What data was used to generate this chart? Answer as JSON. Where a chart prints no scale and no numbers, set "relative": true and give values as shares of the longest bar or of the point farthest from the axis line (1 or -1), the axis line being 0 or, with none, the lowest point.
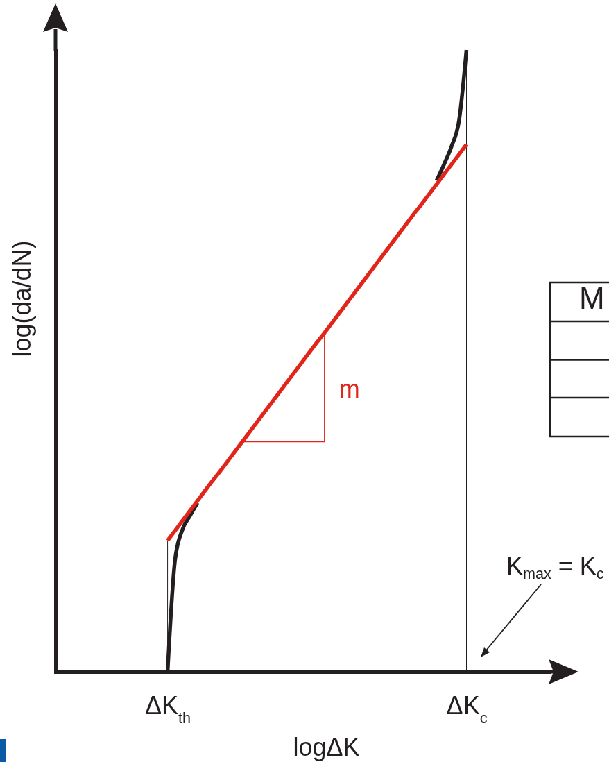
{
  "chart_data": {
    "type": "line",
    "xlabel": "logΔK",
    "ylabel": "log(da/dN)",
    "relative": true,
    "categories": [
      null,
      null,
      null,
      null,
      null,
      null,
      null,
      null,
      null,
      null,
      null,
      null,
      null,
      null,
      null,
      "ΔK$_{th}$",
      null,
      null,
      null,
      null,
      null,
      null,
      null,
      null,
      null,
      null,
      null,
      null,
      null,
      null,
      null,
      null,
      null,
      null,
      null,
      null,
      null,
      null,
      null,
      null,
      null,
      null,
      null,
      null,
      null,
      null,
      null,
      null,
      null,
      null,
      null,
      null,
      null,
      null,
      null,
      "ΔK$_{c}$",
      null,
      null,
      null,
      null,
      null,
      null,
      null,
      null,
      null,
      null,
      null
    ],
    "series": [
      {
        "color": "#231f20",
        "values": [
          null,
          null,
          null,
          null,
          null,
          null,
          null,
          null,
          null,
          null,
          null,
          null,
          null,
          null,
          null,
          0,
          0.18,
          0.229,
          0.251,
          0.272,
          null,
          null,
          null,
          null,
          null,
          null,
          null,
          null,
          null,
          null,
          null,
          null,
          null,
          null,
          null,
          null,
          null,
          null,
          null,
          null,
          null,
          null,
          null,
          null,
          null,
          null,
          null,
          null,
          null,
          null,
          null,
          0.79,
          0.816,
          0.845,
          0.886,
          1,
          null,
          null,
          null,
          null,
          null,
          null,
          null,
          null,
          null,
          null,
          null
        ]
      },
      {
        "type": "line",
        "color": "#e1251b",
        "values": [
          null,
          null,
          null,
          null,
          null,
          null,
          null,
          null,
          null,
          null,
          null,
          null,
          null,
          null,
          null,
          0.211,
          0.227,
          0.243,
          0.259,
          0.275,
          0.291,
          0.307,
          0.322,
          0.338,
          0.354,
          0.37,
          0.386,
          0.402,
          0.418,
          0.434,
          0.45,
          0.466,
          0.482,
          0.498,
          0.514,
          0.53,
          0.545,
          0.561,
          0.577,
          0.593,
          0.609,
          0.625,
          0.641,
          0.657,
          0.673,
          0.689,
          0.705,
          0.721,
          0.737,
          0.752,
          0.768,
          0.784,
          0.8,
          0.816,
          0.832,
          0.848,
          null,
          null,
          null,
          null,
          null,
          null,
          null,
          null,
          null,
          null,
          null
        ]
      }
    ],
    "ref_lines": [
      {
        "axis": "x",
        "value": "ΔK$_{th}$",
        "color": "#231f20"
      },
      {
        "axis": "x",
        "value": "ΔK$_{c}$",
        "color": "#231f20"
      }
    ],
    "annotations": [
      "K$_{max}$ = K$_{c}$",
      "m",
      "M"
    ],
    "grid": false,
    "marker": "none",
    "line_style": "solid"
  }
}
